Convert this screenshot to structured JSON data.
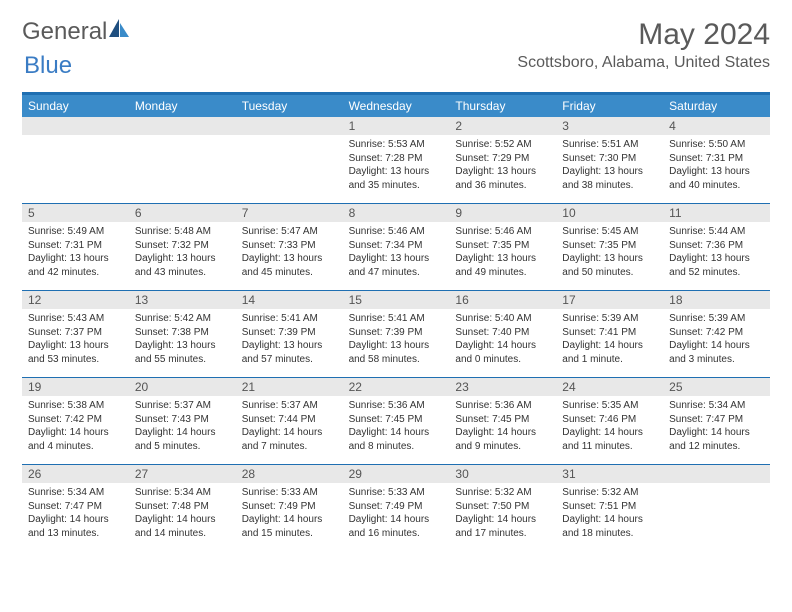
{
  "logo": {
    "textA": "General",
    "textB": "Blue"
  },
  "header": {
    "month_title": "May 2024",
    "location": "Scottsboro, Alabama, United States"
  },
  "day_labels": [
    "Sunday",
    "Monday",
    "Tuesday",
    "Wednesday",
    "Thursday",
    "Friday",
    "Saturday"
  ],
  "colors": {
    "header_bg": "#3a8bc9",
    "border": "#1f6fb2",
    "daynum_bg": "#e8e8e8",
    "text": "#333333"
  },
  "weeks": [
    [
      null,
      null,
      null,
      {
        "n": "1",
        "sr": "5:53 AM",
        "ss": "7:28 PM",
        "dl": "13 hours and 35 minutes."
      },
      {
        "n": "2",
        "sr": "5:52 AM",
        "ss": "7:29 PM",
        "dl": "13 hours and 36 minutes."
      },
      {
        "n": "3",
        "sr": "5:51 AM",
        "ss": "7:30 PM",
        "dl": "13 hours and 38 minutes."
      },
      {
        "n": "4",
        "sr": "5:50 AM",
        "ss": "7:31 PM",
        "dl": "13 hours and 40 minutes."
      }
    ],
    [
      {
        "n": "5",
        "sr": "5:49 AM",
        "ss": "7:31 PM",
        "dl": "13 hours and 42 minutes."
      },
      {
        "n": "6",
        "sr": "5:48 AM",
        "ss": "7:32 PM",
        "dl": "13 hours and 43 minutes."
      },
      {
        "n": "7",
        "sr": "5:47 AM",
        "ss": "7:33 PM",
        "dl": "13 hours and 45 minutes."
      },
      {
        "n": "8",
        "sr": "5:46 AM",
        "ss": "7:34 PM",
        "dl": "13 hours and 47 minutes."
      },
      {
        "n": "9",
        "sr": "5:46 AM",
        "ss": "7:35 PM",
        "dl": "13 hours and 49 minutes."
      },
      {
        "n": "10",
        "sr": "5:45 AM",
        "ss": "7:35 PM",
        "dl": "13 hours and 50 minutes."
      },
      {
        "n": "11",
        "sr": "5:44 AM",
        "ss": "7:36 PM",
        "dl": "13 hours and 52 minutes."
      }
    ],
    [
      {
        "n": "12",
        "sr": "5:43 AM",
        "ss": "7:37 PM",
        "dl": "13 hours and 53 minutes."
      },
      {
        "n": "13",
        "sr": "5:42 AM",
        "ss": "7:38 PM",
        "dl": "13 hours and 55 minutes."
      },
      {
        "n": "14",
        "sr": "5:41 AM",
        "ss": "7:39 PM",
        "dl": "13 hours and 57 minutes."
      },
      {
        "n": "15",
        "sr": "5:41 AM",
        "ss": "7:39 PM",
        "dl": "13 hours and 58 minutes."
      },
      {
        "n": "16",
        "sr": "5:40 AM",
        "ss": "7:40 PM",
        "dl": "14 hours and 0 minutes."
      },
      {
        "n": "17",
        "sr": "5:39 AM",
        "ss": "7:41 PM",
        "dl": "14 hours and 1 minute."
      },
      {
        "n": "18",
        "sr": "5:39 AM",
        "ss": "7:42 PM",
        "dl": "14 hours and 3 minutes."
      }
    ],
    [
      {
        "n": "19",
        "sr": "5:38 AM",
        "ss": "7:42 PM",
        "dl": "14 hours and 4 minutes."
      },
      {
        "n": "20",
        "sr": "5:37 AM",
        "ss": "7:43 PM",
        "dl": "14 hours and 5 minutes."
      },
      {
        "n": "21",
        "sr": "5:37 AM",
        "ss": "7:44 PM",
        "dl": "14 hours and 7 minutes."
      },
      {
        "n": "22",
        "sr": "5:36 AM",
        "ss": "7:45 PM",
        "dl": "14 hours and 8 minutes."
      },
      {
        "n": "23",
        "sr": "5:36 AM",
        "ss": "7:45 PM",
        "dl": "14 hours and 9 minutes."
      },
      {
        "n": "24",
        "sr": "5:35 AM",
        "ss": "7:46 PM",
        "dl": "14 hours and 11 minutes."
      },
      {
        "n": "25",
        "sr": "5:34 AM",
        "ss": "7:47 PM",
        "dl": "14 hours and 12 minutes."
      }
    ],
    [
      {
        "n": "26",
        "sr": "5:34 AM",
        "ss": "7:47 PM",
        "dl": "14 hours and 13 minutes."
      },
      {
        "n": "27",
        "sr": "5:34 AM",
        "ss": "7:48 PM",
        "dl": "14 hours and 14 minutes."
      },
      {
        "n": "28",
        "sr": "5:33 AM",
        "ss": "7:49 PM",
        "dl": "14 hours and 15 minutes."
      },
      {
        "n": "29",
        "sr": "5:33 AM",
        "ss": "7:49 PM",
        "dl": "14 hours and 16 minutes."
      },
      {
        "n": "30",
        "sr": "5:32 AM",
        "ss": "7:50 PM",
        "dl": "14 hours and 17 minutes."
      },
      {
        "n": "31",
        "sr": "5:32 AM",
        "ss": "7:51 PM",
        "dl": "14 hours and 18 minutes."
      },
      null
    ]
  ],
  "labels": {
    "sunrise": "Sunrise: ",
    "sunset": "Sunset: ",
    "daylight": "Daylight: "
  }
}
